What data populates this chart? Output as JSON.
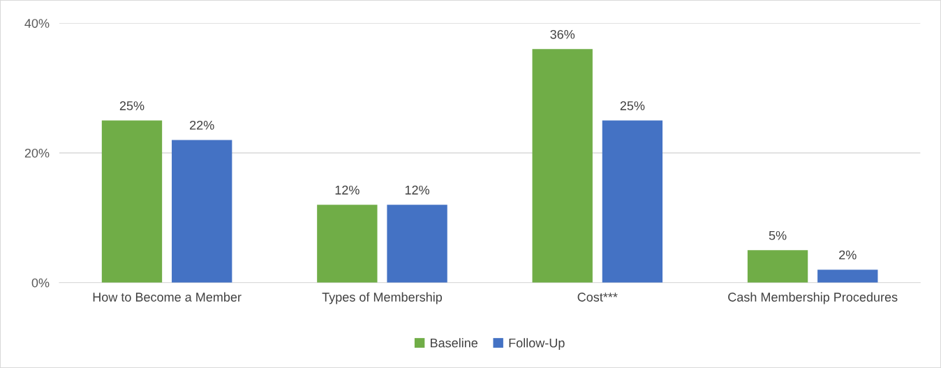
{
  "chart_data": {
    "type": "bar",
    "categories": [
      "How to Become a Member",
      "Types of Membership",
      "Cost***",
      "Cash Membership Procedures"
    ],
    "series": [
      {
        "name": "Baseline",
        "color": "#70ad47",
        "values": [
          25,
          12,
          36,
          5
        ],
        "value_labels": [
          "25%",
          "12%",
          "36%",
          "5%"
        ]
      },
      {
        "name": "Follow-Up",
        "color": "#4472c4",
        "values": [
          22,
          12,
          25,
          2
        ],
        "value_labels": [
          "22%",
          "12%",
          "25%",
          "2%"
        ]
      }
    ],
    "ylim": [
      0,
      40
    ],
    "yticks": [
      {
        "value": 0,
        "label": "0%"
      },
      {
        "value": 20,
        "label": "20%"
      },
      {
        "value": 40,
        "label": "40%"
      }
    ],
    "grid": "y",
    "legend": "bottom"
  }
}
